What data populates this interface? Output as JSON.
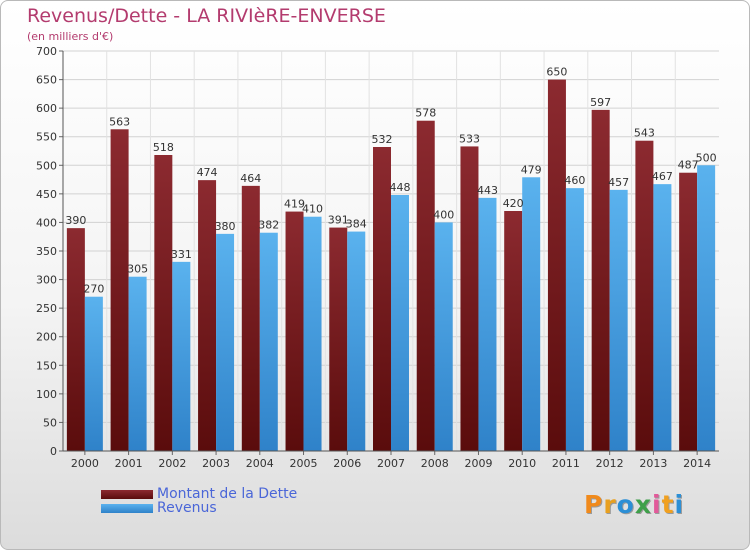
{
  "title": "Revenus/Dette - LA RIVIèRE-ENVERSE",
  "subtitle": "(en milliers d'€)",
  "brand": "Proxiti",
  "chart_data": {
    "type": "bar",
    "categories": [
      "2000",
      "2001",
      "2002",
      "2003",
      "2004",
      "2005",
      "2006",
      "2007",
      "2008",
      "2009",
      "2010",
      "2011",
      "2012",
      "2013",
      "2014"
    ],
    "series": [
      {
        "name": "Montant de la Dette",
        "color": "#7a1a1e",
        "values": [
          390,
          563,
          518,
          474,
          464,
          419,
          391,
          532,
          578,
          533,
          420,
          650,
          597,
          543,
          487
        ]
      },
      {
        "name": "Revenus",
        "color": "#4aa3e6",
        "values": [
          270,
          305,
          331,
          380,
          382,
          410,
          384,
          448,
          400,
          443,
          479,
          460,
          457,
          467,
          500
        ]
      }
    ],
    "ylim": [
      0,
      700
    ],
    "yticks": [
      0,
      50,
      100,
      150,
      200,
      250,
      300,
      350,
      400,
      450,
      500,
      550,
      600,
      650,
      700
    ],
    "grid": true,
    "legend_position": "bottom-left"
  }
}
